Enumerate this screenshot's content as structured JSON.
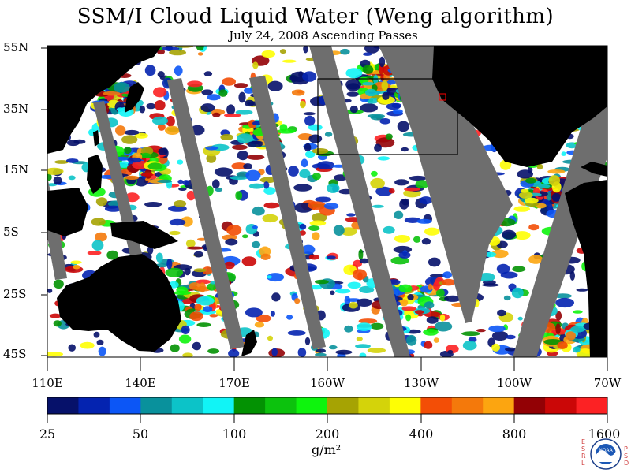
{
  "title": "SSM/I Cloud Liquid Water (Weng algorithm)",
  "subtitle": "July 24, 2008  Ascending Passes",
  "map": {
    "lat_labels": [
      "55N",
      "35N",
      "15N",
      "5S",
      "25S",
      "45S"
    ],
    "lon_labels": [
      "110E",
      "140E",
      "170E",
      "160W",
      "130W",
      "100W",
      "70W"
    ],
    "colors": {
      "land": "#000000",
      "no_data_gap": "#6e6e6e",
      "clear_ocean": "#ffffff",
      "highlight_box": "#000000",
      "marker_box": "#ff0000"
    }
  },
  "colorbar": {
    "tick_labels": [
      "25",
      "50",
      "100",
      "200",
      "400",
      "800",
      "1600"
    ],
    "units": "g/m²",
    "colors": [
      "#06116a",
      "#0423b0",
      "#0c56f6",
      "#09919c",
      "#0cc3c8",
      "#11f4f6",
      "#039203",
      "#0cc20d",
      "#0ef40d",
      "#a6a303",
      "#d4d30a",
      "#fefe04",
      "#f34e06",
      "#f4790b",
      "#fca510",
      "#930105",
      "#cb0707",
      "#fc2224"
    ]
  },
  "logo": {
    "left_text": "ESRL",
    "center_text": "NOAA",
    "right_text": "PSD"
  }
}
